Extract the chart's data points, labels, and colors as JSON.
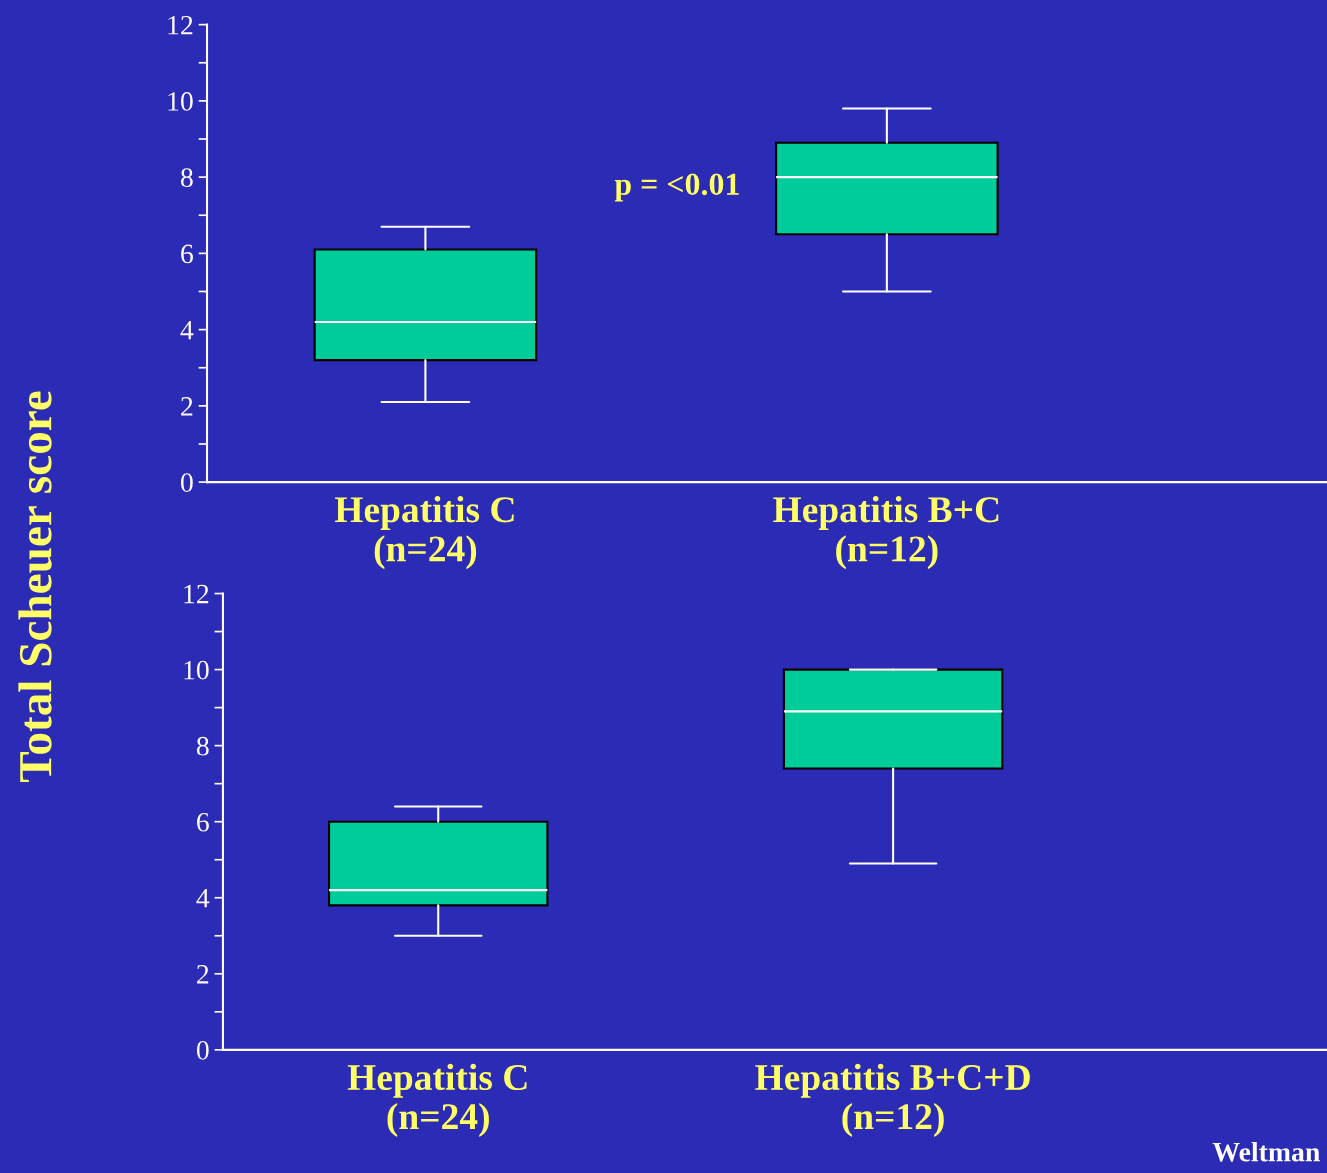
{
  "chart_data": [
    {
      "type": "box",
      "ylabel": "Total Scheuer score",
      "categories": [
        "Hepatitis C\n(n=24)",
        "Hepatitis B+C\n(n=12)"
      ],
      "boxes": [
        {
          "low": 2.1,
          "q1": 3.2,
          "median": 4.2,
          "q3": 6.1,
          "high": 6.7
        },
        {
          "low": 5.0,
          "q1": 6.5,
          "median": 8.0,
          "q3": 8.9,
          "high": 9.8
        }
      ],
      "color": "#00cc99",
      "ylim": [
        0,
        12
      ],
      "yticks": [
        0,
        {
          "value": 1,
          "label": null
        },
        2,
        {
          "value": 3,
          "label": null
        },
        4,
        {
          "value": 5,
          "label": null
        },
        6,
        {
          "value": 7,
          "label": null
        },
        8,
        {
          "value": 9,
          "label": null
        },
        10,
        {
          "value": 11,
          "label": null
        },
        12
      ],
      "annotations": [
        "p = <0.01"
      ],
      "grid": false,
      "legend": false
    },
    {
      "type": "box",
      "categories": [
        "Hepatitis C\n(n=24)",
        "Hepatitis B+C+D\n(n=12)"
      ],
      "boxes": [
        {
          "low": 3.0,
          "q1": 3.8,
          "median": 4.2,
          "q3": 6.0,
          "high": 6.4
        },
        {
          "low": 4.9,
          "q1": 7.4,
          "median": 8.9,
          "q3": 10.0,
          "high": 10.0
        }
      ],
      "color": "#00cc99",
      "ylim": [
        0,
        12
      ],
      "yticks": [
        0,
        {
          "value": 1,
          "label": null
        },
        2,
        {
          "value": 3,
          "label": null
        },
        4,
        {
          "value": 5,
          "label": null
        },
        6,
        {
          "value": 7,
          "label": null
        },
        8,
        {
          "value": 9,
          "label": null
        },
        10,
        {
          "value": 11,
          "label": null
        },
        12
      ],
      "annotations": [
        "Weltman"
      ],
      "grid": false,
      "legend": false
    }
  ]
}
